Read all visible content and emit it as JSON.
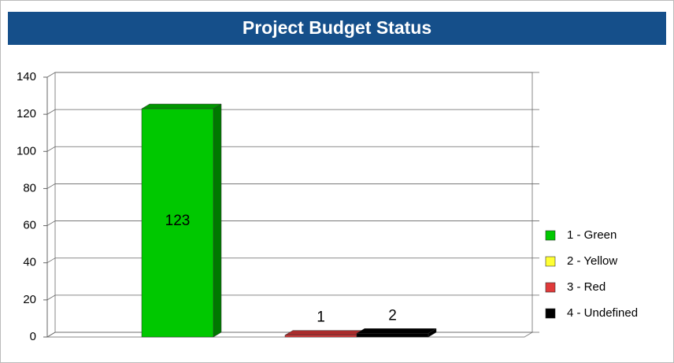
{
  "chart_data": {
    "type": "bar",
    "title": "Project Budget Status",
    "categories": [
      "1 - Green",
      "2 - Yellow",
      "3 - Red",
      "4 - Undefined"
    ],
    "values": [
      123,
      0,
      1,
      2
    ],
    "colors": [
      "#00c800",
      "#ffff33",
      "#e03a3a",
      "#000000"
    ],
    "ylim": [
      0,
      140
    ],
    "yticks": [
      0,
      20,
      40,
      60,
      80,
      100,
      120,
      140
    ],
    "grid": true,
    "legend": "right"
  }
}
